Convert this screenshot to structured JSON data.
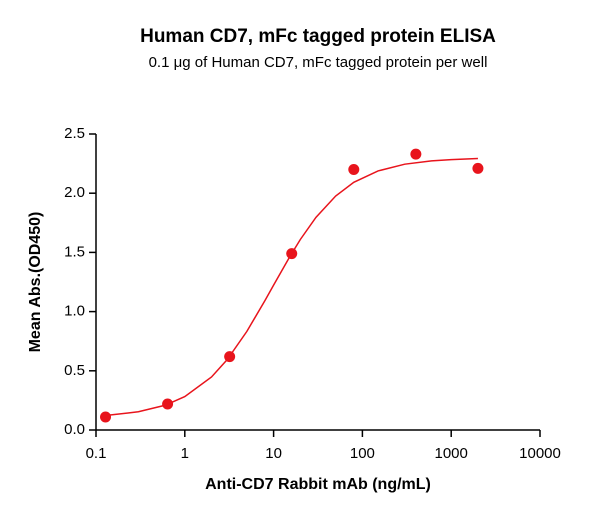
{
  "chart_data": {
    "type": "scatter",
    "title": "Human CD7, mFc tagged protein ELISA",
    "subtitle": "0.1 μg of Human CD7, mFc tagged protein per well",
    "x_label": "Anti-CD7 Rabbit mAb (ng/mL)",
    "y_label": "Mean Abs.(OD450)",
    "x_log": true,
    "xlim": [
      0.1,
      10000
    ],
    "xticks": [
      0.1,
      1,
      10,
      100,
      1000,
      10000
    ],
    "ylim": [
      0,
      2.5
    ],
    "yticks": [
      {
        "value": 0,
        "label": "0.0"
      },
      {
        "value": 0.5,
        "label": "0.5"
      },
      {
        "value": 1,
        "label": "1.0"
      },
      {
        "value": 1.5,
        "label": "1.5"
      },
      {
        "value": 2,
        "label": "2.0"
      },
      {
        "value": 2.5,
        "label": "2.5"
      }
    ],
    "color": "#e8141c",
    "x": [
      0.128,
      0.64,
      3.2,
      16,
      80,
      400,
      2000
    ],
    "values": [
      0.11,
      0.22,
      0.62,
      1.49,
      2.2,
      2.33,
      2.21
    ],
    "curve": {
      "x": [
        0.128,
        0.3,
        0.6,
        1,
        2,
        3,
        5,
        8,
        10,
        15,
        20,
        30,
        50,
        80,
        150,
        300,
        600,
        1000,
        2000
      ],
      "values": [
        0.122,
        0.154,
        0.209,
        0.282,
        0.448,
        0.594,
        0.833,
        1.094,
        1.224,
        1.456,
        1.609,
        1.796,
        1.976,
        2.092,
        2.188,
        2.245,
        2.273,
        2.284,
        2.293
      ]
    }
  }
}
